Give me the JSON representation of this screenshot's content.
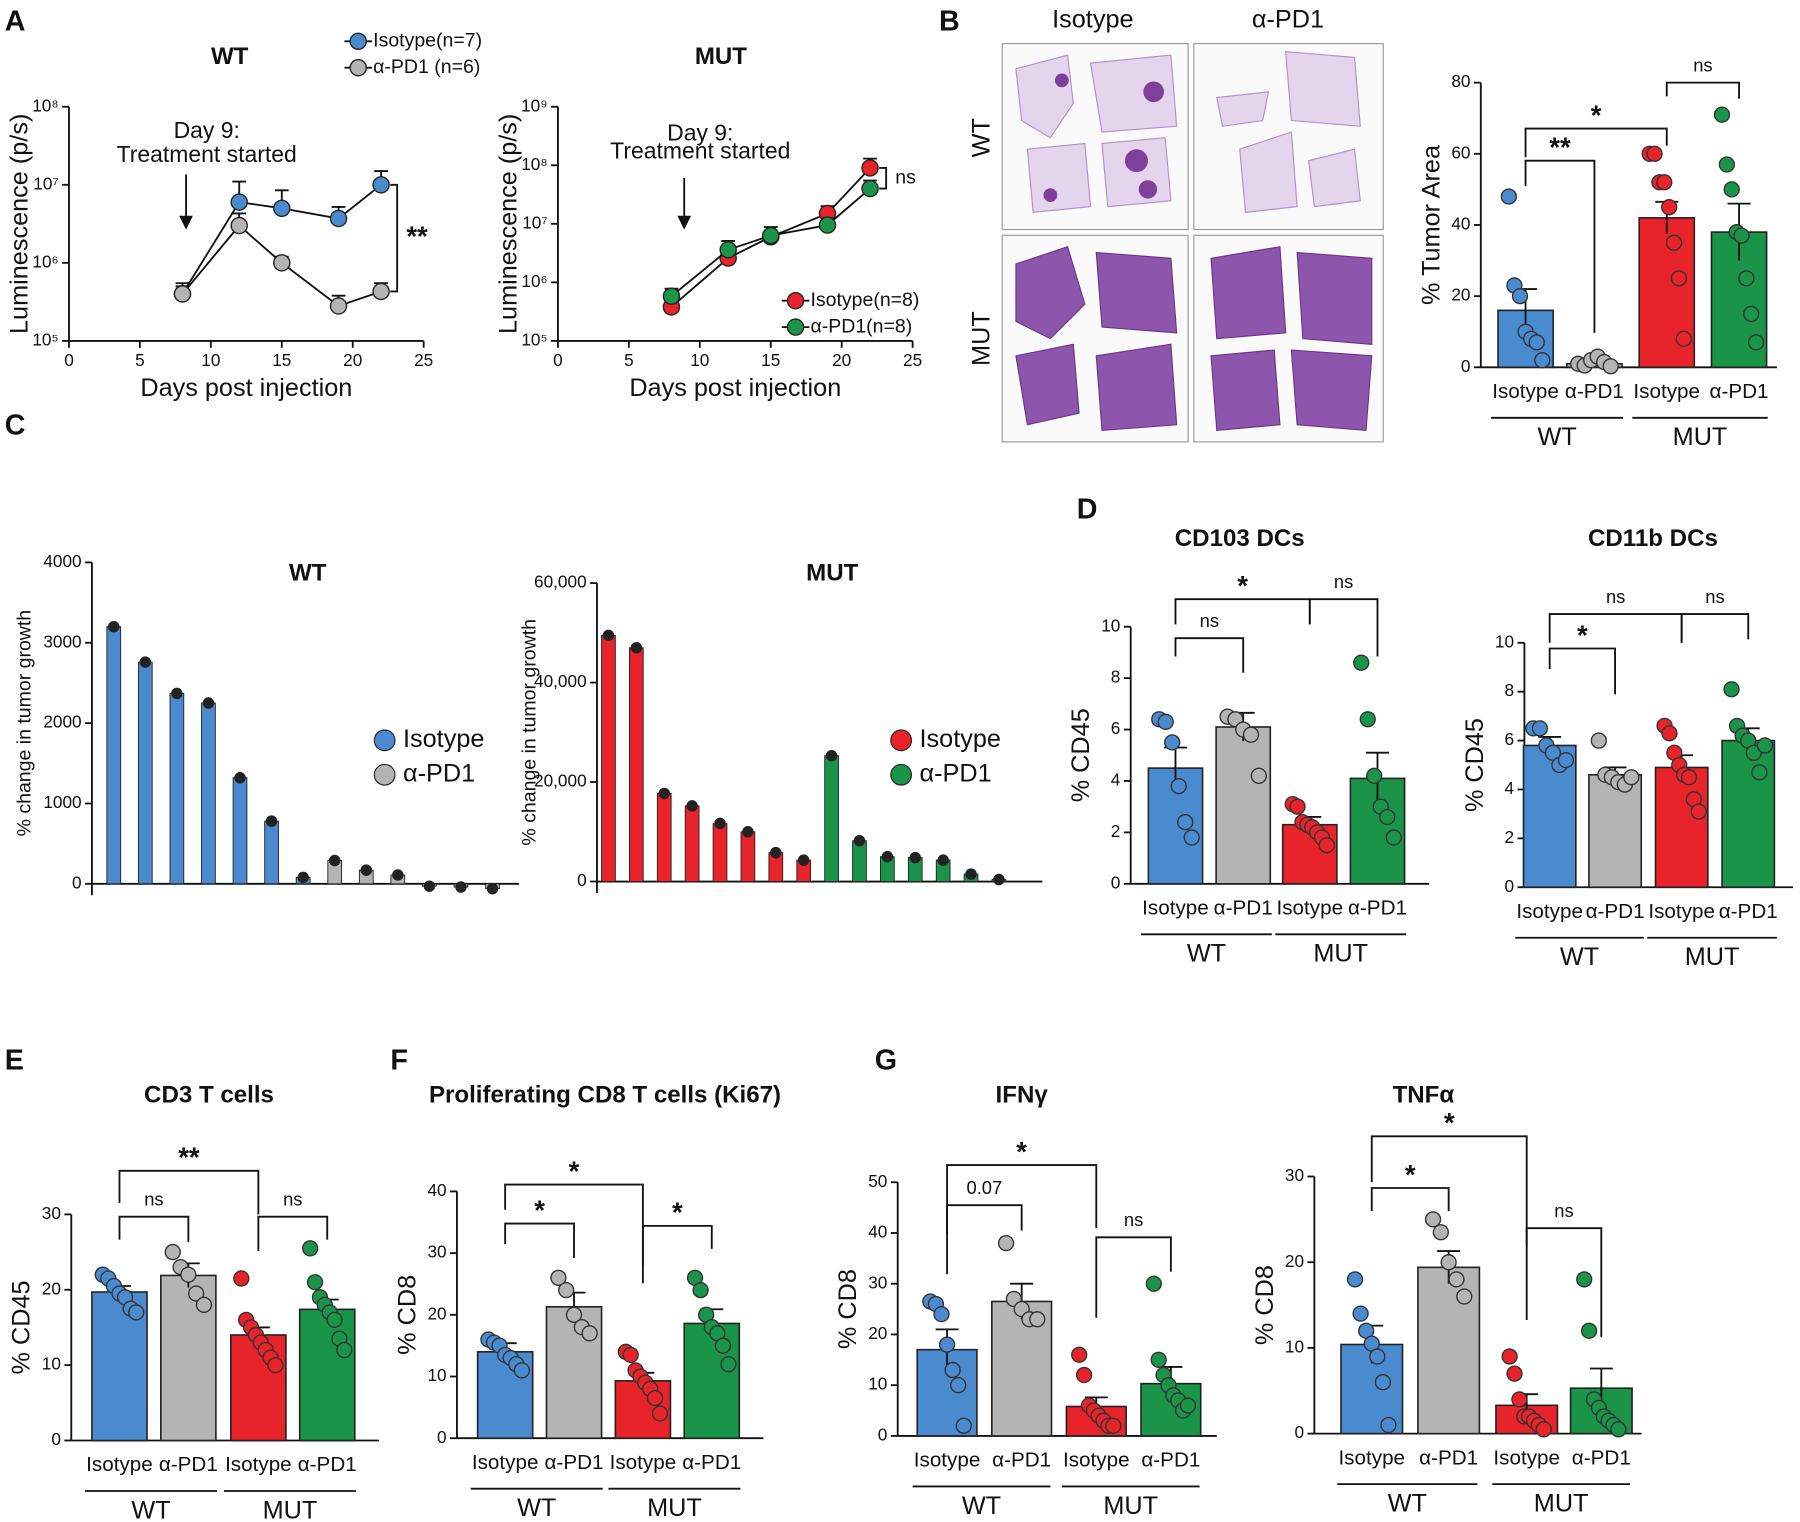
{
  "panel_labels": [
    "A",
    "B",
    "C",
    "D",
    "E",
    "F",
    "G"
  ],
  "histology": {
    "columns": [
      "Isotype",
      "α-PD1"
    ],
    "rows": [
      "WT",
      "MUT"
    ]
  },
  "chart_data": [
    {
      "type": "line",
      "title": "WT",
      "ylabel": "Luminescence (p/s)",
      "xlabel": "Days post injection",
      "yscale": "log",
      "legend": "upper right",
      "annotation": [
        "Day 9:",
        "Treatment started"
      ],
      "significance": "**",
      "x": [
        8,
        12,
        15,
        19,
        22
      ],
      "xlim": [
        0,
        25
      ],
      "xticks": [
        0,
        5,
        10,
        15,
        20,
        25
      ],
      "ylim": [
        100000,
        100000000
      ],
      "yticks": [
        {
          "value": 100000,
          "label": "10⁵"
        },
        {
          "value": 1000000,
          "label": "10⁶"
        },
        {
          "value": 10000000,
          "label": "10⁷"
        },
        {
          "value": 100000000,
          "label": "10⁸"
        }
      ],
      "series": [
        {
          "name": "Isotype(n=7)",
          "color": "#4a8bd0",
          "values": [
            400000,
            6000000,
            5000000,
            3700000,
            10000000
          ],
          "errors": [
            150000,
            5000000,
            3500000,
            1500000,
            5000000
          ]
        },
        {
          "name": "α-PD1 (n=6)",
          "color": "#b4b4b4",
          "values": [
            400000,
            3000000,
            1000000,
            280000,
            430000
          ],
          "errors": [
            100000,
            1300000,
            200000,
            100000,
            120000
          ]
        }
      ]
    },
    {
      "type": "line",
      "title": "MUT",
      "ylabel": "Luminescence (p/s)",
      "xlabel": "Days post injection",
      "yscale": "log",
      "legend": "lower right",
      "annotation": [
        "Day 9:",
        "Treatment started"
      ],
      "significance": "ns",
      "x": [
        8,
        12,
        15,
        19,
        22
      ],
      "xlim": [
        0,
        25
      ],
      "xticks": [
        0,
        5,
        10,
        15,
        20,
        25
      ],
      "ylim": [
        100000,
        1000000000
      ],
      "yticks": [
        {
          "value": 100000,
          "label": "10⁵"
        },
        {
          "value": 1000000,
          "label": "10⁶"
        },
        {
          "value": 10000000,
          "label": "10⁷"
        },
        {
          "value": 100000000,
          "label": "10⁸"
        },
        {
          "value": 1000000000,
          "label": "10⁹"
        }
      ],
      "series": [
        {
          "name": "Isotype(n=8)",
          "color": "#e8232a",
          "values": [
            380000,
            2600000,
            6000000,
            15000000,
            90000000
          ],
          "errors": [
            150000,
            500000,
            1000000,
            5000000,
            40000000
          ]
        },
        {
          "name": "α-PD1(n=8)",
          "color": "#1a9448",
          "values": [
            580000,
            3600000,
            6300000,
            9500000,
            40000000
          ],
          "errors": [
            200000,
            1500000,
            2500000,
            3000000,
            15000000
          ]
        }
      ]
    },
    {
      "type": "bar_scatter",
      "ylabel": "% Tumor Area",
      "categories": [
        "Isotype",
        "α-PD1",
        "Isotype",
        "α-PD1"
      ],
      "groups": [
        "WT",
        "MUT"
      ],
      "colors": [
        "#4a8bd0",
        "#b4b4b4",
        "#e8232a",
        "#1a9448"
      ],
      "ylim": [
        0,
        80
      ],
      "yticks": [
        0,
        20,
        40,
        60,
        80
      ],
      "values": [
        16,
        1,
        42,
        38
      ],
      "errors": [
        6,
        0.5,
        4.5,
        8
      ],
      "points": [
        [
          48,
          23,
          20,
          10,
          8,
          7,
          2
        ],
        [
          1,
          0.5,
          2,
          3,
          1.5,
          0.3
        ],
        [
          60,
          60,
          52,
          52,
          45,
          35,
          25,
          8
        ],
        [
          71,
          57,
          50,
          38,
          37,
          25,
          15,
          7
        ]
      ],
      "significance": [
        "**",
        "*",
        "ns"
      ]
    },
    {
      "type": "waterfall",
      "title": "WT",
      "ylabel": "% change in tumor growth",
      "legend": "right",
      "ylim": [
        0,
        4000
      ],
      "yticks": [
        0,
        1000,
        2000,
        3000,
        4000
      ],
      "series": [
        {
          "name": "Isotype",
          "color": "#4a8bd0",
          "values": [
            3200,
            2760,
            2370,
            2250,
            1320,
            780,
            80,
            null,
            null,
            null,
            null,
            null,
            null
          ]
        },
        {
          "name": "α-PD1",
          "color": "#b4b4b4",
          "values": [
            null,
            null,
            null,
            null,
            null,
            null,
            null,
            290,
            170,
            110,
            -30,
            -40,
            -60
          ]
        }
      ]
    },
    {
      "type": "waterfall",
      "title": "MUT",
      "ylabel": "% change in tumor growth",
      "legend": "right",
      "ylim": [
        0,
        60000
      ],
      "yticks": [
        0,
        {
          "value": 20000,
          "label": "20,000"
        },
        {
          "value": 40000,
          "label": "40,000"
        },
        {
          "value": 60000,
          "label": "60,000"
        }
      ],
      "series": [
        {
          "name": "Isotype",
          "color": "#e8232a",
          "values": [
            49500,
            47000,
            17700,
            15200,
            11700,
            10000,
            5800,
            4300,
            null,
            null,
            null,
            null,
            null,
            null,
            null
          ]
        },
        {
          "name": "α-PD1",
          "color": "#1a9448",
          "values": [
            null,
            null,
            null,
            null,
            null,
            null,
            null,
            null,
            25300,
            8200,
            5000,
            4800,
            4300,
            1500,
            400
          ]
        }
      ]
    },
    {
      "type": "bar_scatter",
      "title": "CD103 DCs",
      "ylabel": "% CD45",
      "categories": [
        "Isotype",
        "α-PD1",
        "Isotype",
        "α-PD1"
      ],
      "groups": [
        "WT",
        "MUT"
      ],
      "colors": [
        "#4a8bd0",
        "#b4b4b4",
        "#e8232a",
        "#1a9448"
      ],
      "ylim": [
        0,
        10
      ],
      "yticks": [
        0,
        2,
        4,
        6,
        8,
        10
      ],
      "values": [
        4.5,
        6.1,
        2.3,
        4.1
      ],
      "errors": [
        0.8,
        0.55,
        0.3,
        1.0
      ],
      "points": [
        [
          6.4,
          6.3,
          5.5,
          3.8,
          2.4,
          1.8
        ],
        [
          6.5,
          6.4,
          6.0,
          5.8,
          4.2
        ],
        [
          3.1,
          3.0,
          2.4,
          2.3,
          2.2,
          2.0,
          1.8,
          1.5
        ],
        [
          8.6,
          6.4,
          4.2,
          3.0,
          2.6,
          1.8
        ]
      ],
      "significance": [
        "ns",
        "*",
        "ns"
      ]
    },
    {
      "type": "bar_scatter",
      "title": "CD11b DCs",
      "ylabel": "% CD45",
      "categories": [
        "Isotype",
        "α-PD1",
        "Isotype",
        "α-PD1"
      ],
      "groups": [
        "WT",
        "MUT"
      ],
      "colors": [
        "#4a8bd0",
        "#b4b4b4",
        "#e8232a",
        "#1a9448"
      ],
      "ylim": [
        0,
        10
      ],
      "yticks": [
        0,
        2,
        4,
        6,
        8,
        10
      ],
      "values": [
        5.8,
        4.6,
        4.9,
        6.0
      ],
      "errors": [
        0.35,
        0.3,
        0.5,
        0.5
      ],
      "points": [
        [
          6.5,
          6.5,
          5.8,
          5.5,
          5.0,
          5.2
        ],
        [
          6.0,
          4.6,
          4.5,
          4.3,
          4.2,
          4.5
        ],
        [
          6.6,
          6.3,
          5.5,
          5.0,
          4.6,
          4.5,
          3.6,
          3.1
        ],
        [
          8.1,
          6.6,
          6.2,
          6.0,
          5.5,
          4.7,
          5.8
        ]
      ],
      "significance": [
        "*",
        "ns",
        "ns"
      ]
    },
    {
      "type": "bar_scatter",
      "title": "CD3 T cells",
      "ylabel": "% CD45",
      "categories": [
        "Isotype",
        "α-PD1",
        "Isotype",
        "α-PD1"
      ],
      "groups": [
        "WT",
        "MUT"
      ],
      "colors": [
        "#4a8bd0",
        "#b4b4b4",
        "#e8232a",
        "#1a9448"
      ],
      "ylim": [
        0,
        30
      ],
      "yticks": [
        0,
        10,
        20,
        30
      ],
      "values": [
        19.7,
        21.9,
        14.0,
        17.4
      ],
      "errors": [
        0.8,
        1.6,
        1.0,
        1.3
      ],
      "points": [
        [
          22,
          21.5,
          20.5,
          19.5,
          19,
          17.5,
          17
        ],
        [
          25,
          23,
          22,
          19.5,
          18
        ],
        [
          21.5,
          16,
          15,
          14,
          13,
          12,
          11,
          10
        ],
        [
          25.5,
          21,
          19,
          18,
          17,
          16,
          13.5,
          12
        ]
      ],
      "significance": [
        "ns",
        "**",
        "ns"
      ]
    },
    {
      "type": "bar_scatter",
      "title": "Proliferating CD8 T cells (Ki67)",
      "ylabel": "% CD8",
      "categories": [
        "Isotype",
        "α-PD1",
        "Isotype",
        "α-PD1"
      ],
      "groups": [
        "WT",
        "MUT"
      ],
      "colors": [
        "#4a8bd0",
        "#b4b4b4",
        "#e8232a",
        "#1a9448"
      ],
      "ylim": [
        0,
        40
      ],
      "yticks": [
        0,
        10,
        20,
        30,
        40
      ],
      "values": [
        14,
        21.3,
        9.3,
        18.6
      ],
      "errors": [
        1.4,
        2.3,
        1.3,
        2.3
      ],
      "points": [
        [
          16,
          15.5,
          15,
          13.5,
          13,
          12,
          11
        ],
        [
          26,
          24,
          20,
          18,
          17
        ],
        [
          14,
          13.5,
          11,
          10,
          9,
          8,
          6.5,
          4
        ],
        [
          26,
          24,
          20,
          18,
          17,
          15,
          12
        ]
      ],
      "significance": [
        "*",
        "*",
        "*"
      ]
    },
    {
      "type": "bar_scatter",
      "title": "IFNγ",
      "ylabel": "% CD8",
      "categories": [
        "Isotype",
        "α-PD1",
        "Isotype",
        "α-PD1"
      ],
      "groups": [
        "WT",
        "MUT"
      ],
      "colors": [
        "#4a8bd0",
        "#b4b4b4",
        "#e8232a",
        "#1a9448"
      ],
      "ylim": [
        0,
        50
      ],
      "yticks": [
        0,
        10,
        20,
        30,
        40,
        50
      ],
      "values": [
        17,
        26.5,
        5.8,
        10.3
      ],
      "errors": [
        4,
        3.5,
        1.8,
        3.3
      ],
      "points": [
        [
          26.5,
          26,
          24,
          18,
          13,
          10,
          2
        ],
        [
          38,
          27,
          25,
          23,
          23
        ],
        [
          16,
          12,
          6,
          5,
          4,
          3,
          2,
          2
        ],
        [
          30,
          15,
          12,
          10,
          8,
          7,
          5,
          6
        ]
      ],
      "significance": [
        "0.07",
        "*",
        "ns"
      ]
    },
    {
      "type": "bar_scatter",
      "title": "TNFα",
      "ylabel": "% CD8",
      "categories": [
        "Isotype",
        "α-PD1",
        "Isotype",
        "α-PD1"
      ],
      "groups": [
        "WT",
        "MUT"
      ],
      "colors": [
        "#4a8bd0",
        "#b4b4b4",
        "#e8232a",
        "#1a9448"
      ],
      "ylim": [
        0,
        30
      ],
      "yticks": [
        0,
        10,
        20,
        30
      ],
      "values": [
        10.4,
        19.4,
        3.3,
        5.3
      ],
      "errors": [
        2.2,
        1.9,
        1.3,
        2.3
      ],
      "points": [
        [
          18,
          14,
          12,
          10.5,
          9,
          6,
          1
        ],
        [
          25,
          23.5,
          20,
          18,
          16
        ],
        [
          9,
          7,
          4,
          2,
          2,
          1.5,
          1,
          0.5
        ],
        [
          18,
          12,
          4,
          3,
          2,
          1.5,
          1,
          0.5
        ]
      ],
      "significance": [
        "*",
        "*",
        "ns"
      ]
    }
  ]
}
